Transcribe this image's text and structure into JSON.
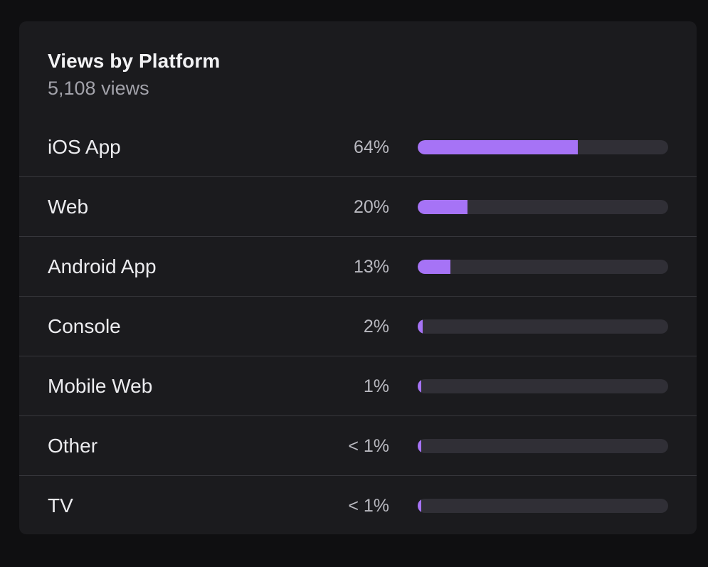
{
  "card": {
    "title": "Views by Platform",
    "subtitle": "5,108 views"
  },
  "colors": {
    "background": "#0f0f11",
    "card": "#1b1b1e",
    "track": "#302f36",
    "accent": "#a673f6"
  },
  "platforms": [
    {
      "label": "iOS App",
      "percent_label": "64%",
      "share": 0.64
    },
    {
      "label": "Web",
      "percent_label": "20%",
      "share": 0.2
    },
    {
      "label": "Android App",
      "percent_label": "13%",
      "share": 0.13
    },
    {
      "label": "Console",
      "percent_label": "2%",
      "share": 0.02
    },
    {
      "label": "Mobile Web",
      "percent_label": "1%",
      "share": 0.01
    },
    {
      "label": "Other",
      "percent_label": "< 1%",
      "share": 0.005
    },
    {
      "label": "TV",
      "percent_label": "< 1%",
      "share": 0.005
    }
  ]
}
